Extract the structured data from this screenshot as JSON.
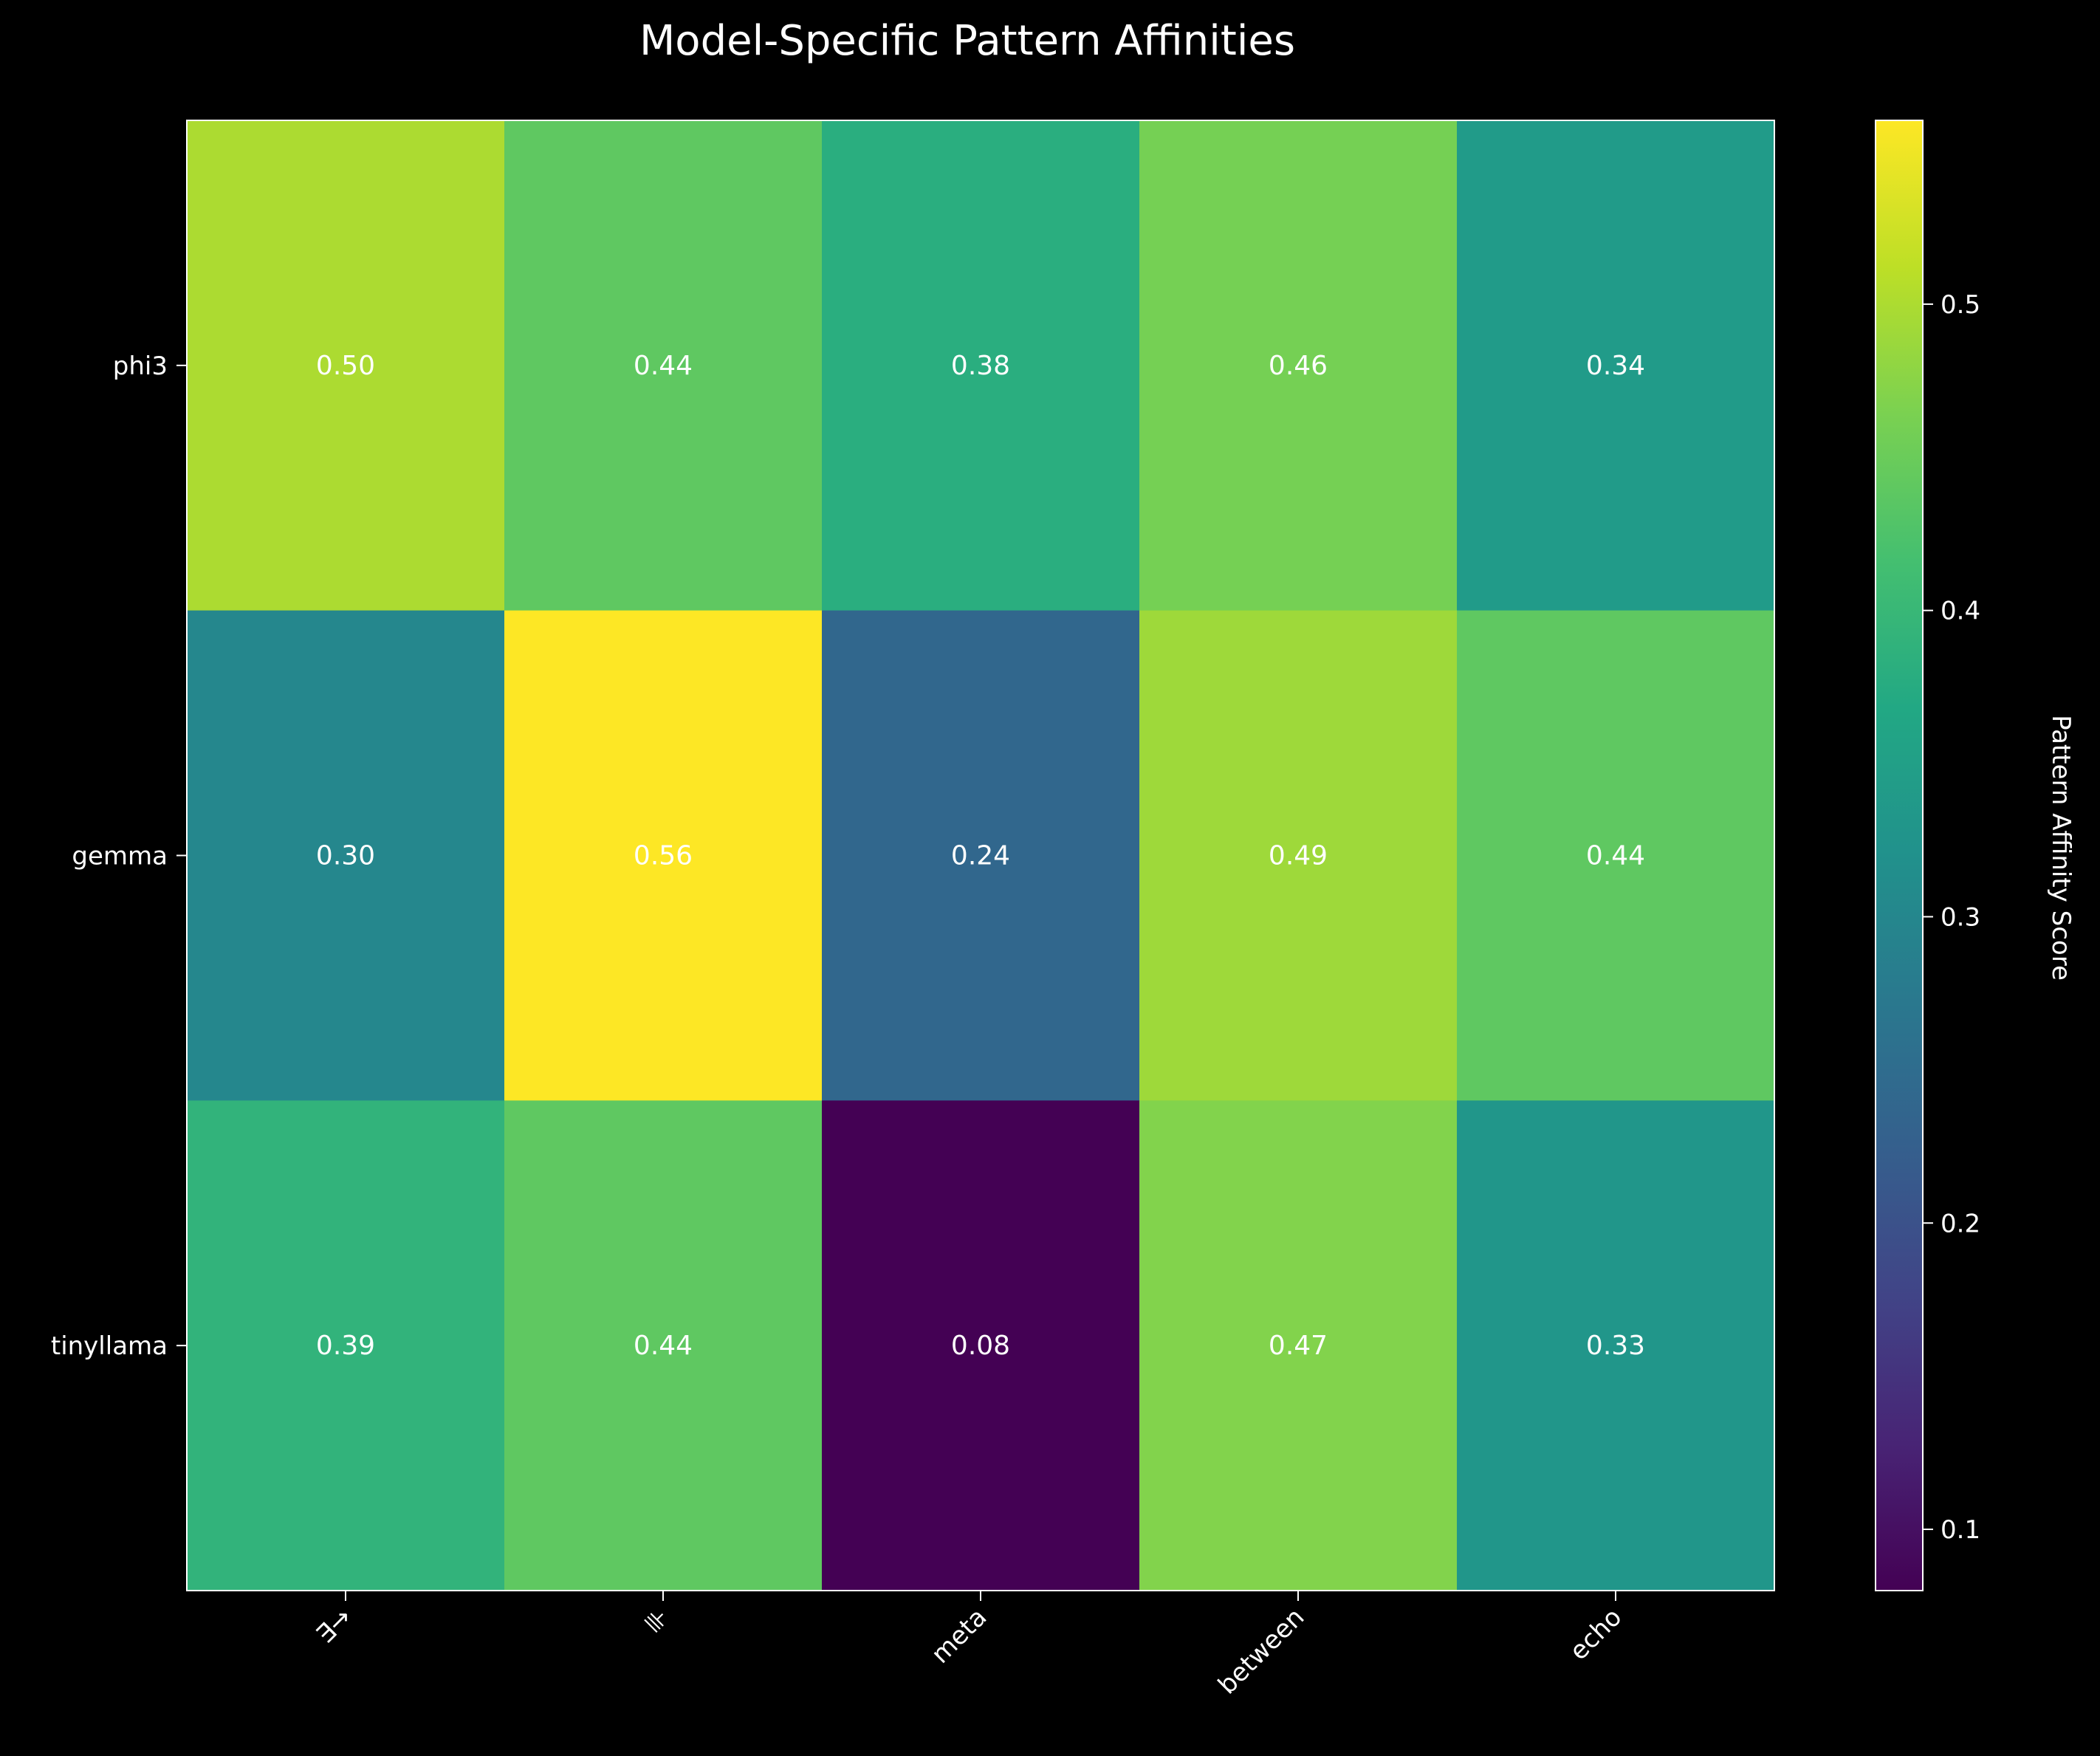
{
  "chart_data": {
    "type": "heatmap",
    "title": "Model-Specific Pattern Affinities",
    "xlabel": "",
    "ylabel": "",
    "x_categories": [
      "∃→",
      "⊪",
      "meta",
      "between",
      "echo"
    ],
    "y_categories": [
      "phi3",
      "gemma",
      "tinyllama"
    ],
    "values": [
      [
        0.5,
        0.44,
        0.38,
        0.46,
        0.34
      ],
      [
        0.3,
        0.56,
        0.24,
        0.49,
        0.44
      ],
      [
        0.39,
        0.44,
        0.08,
        0.47,
        0.33
      ]
    ],
    "cell_labels": [
      [
        "0.50",
        "0.44",
        "0.38",
        "0.46",
        "0.34"
      ],
      [
        "0.30",
        "0.56",
        "0.24",
        "0.49",
        "0.44"
      ],
      [
        "0.39",
        "0.44",
        "0.08",
        "0.47",
        "0.33"
      ]
    ],
    "colormap": "viridis",
    "colorbar": {
      "label": "Pattern Affinity Score",
      "vmin": 0.08,
      "vmax": 0.56,
      "ticks": [
        0.1,
        0.2,
        0.3,
        0.4,
        0.5
      ],
      "tick_labels": [
        "0.1",
        "0.2",
        "0.3",
        "0.4",
        "0.5"
      ]
    },
    "x_tick_rotation": 45,
    "grid": false,
    "background_color": "#000000",
    "text_color": "#ffffff"
  }
}
